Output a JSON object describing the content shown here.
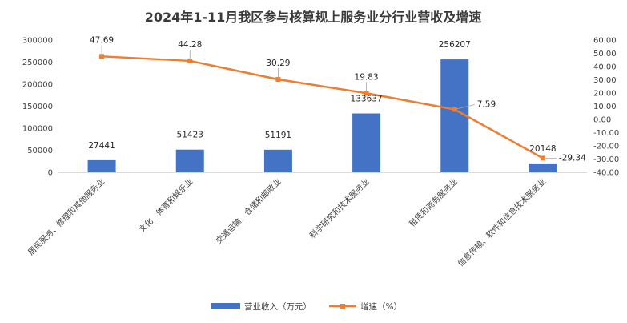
{
  "chart_data": {
    "type": "bar",
    "title": "2024年1-11月我区参与核算规上服务业分行业营收及增速",
    "categories": [
      "居民服务、修理和其他服务业",
      "文化、体育和娱乐业",
      "交通运输、仓储和邮政业",
      "科学研究和技术服务业",
      "租赁和商务服务业",
      "信息传输、软件和信息技术服务业"
    ],
    "series": [
      {
        "name": "营业收入（万元）",
        "type": "bar",
        "axis": "left",
        "color": "#4472C4",
        "values": [
          27441,
          51423,
          51191,
          133637,
          256207,
          20148
        ]
      },
      {
        "name": "增速（%）",
        "type": "line",
        "axis": "right",
        "color": "#ED7D31",
        "values": [
          47.69,
          44.28,
          30.29,
          19.83,
          7.59,
          -29.34
        ]
      }
    ],
    "ylim_left": [
      0,
      300000
    ],
    "yticks_left": [
      "0",
      "50000",
      "100000",
      "150000",
      "200000",
      "250000",
      "300000"
    ],
    "ylim_right": [
      -40,
      60
    ],
    "yticks_right": [
      "-40.00",
      "-30.00",
      "-20.00",
      "-10.00",
      "0.00",
      "10.00",
      "20.00",
      "30.00",
      "40.00",
      "50.00",
      "60.00"
    ],
    "grid": false,
    "legend_position": "bottom"
  }
}
